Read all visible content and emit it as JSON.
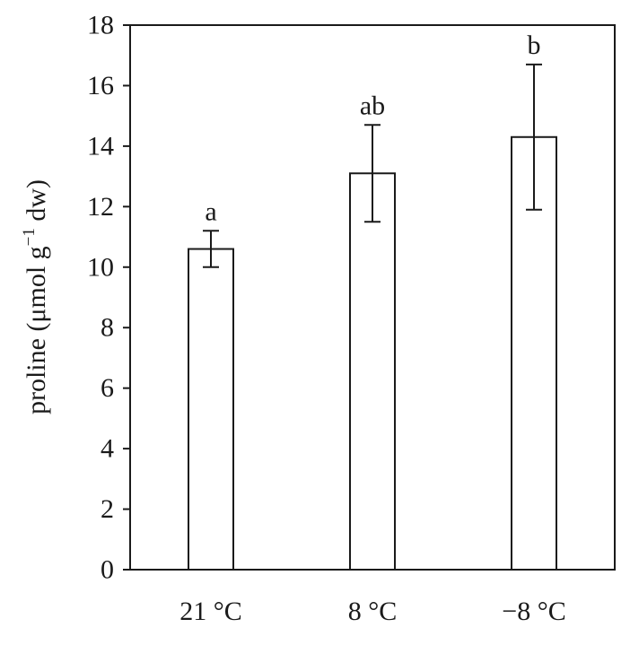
{
  "chart_data": {
    "type": "bar",
    "categories": [
      "21 °C",
      "8 °C",
      "−8 °C"
    ],
    "values": [
      10.6,
      13.1,
      14.3
    ],
    "error": [
      0.6,
      1.6,
      2.4
    ],
    "significance_labels": [
      "a",
      "ab",
      "b"
    ],
    "title": "",
    "xlabel": "",
    "ylabel": {
      "prefix": "proline (μmol g",
      "superscript": "−1",
      "suffix": " dw)"
    },
    "ylim": [
      0,
      18
    ],
    "yticks": [
      0,
      2,
      4,
      6,
      8,
      10,
      12,
      14,
      16,
      18
    ],
    "grid": false,
    "legend": "none",
    "colors": {
      "bar_fill": "#ffffff",
      "bar_stroke": "#1a1a1a",
      "axis": "#1a1a1a"
    }
  }
}
